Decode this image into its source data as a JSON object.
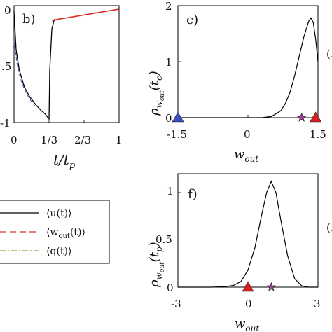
{
  "panels": {
    "b": {
      "label": "b)",
      "xlabel": "t/t",
      "xlabel_sub": "p",
      "x_tick_labels": [
        "0",
        "1/3",
        "2/3",
        "1"
      ],
      "y_tick_labels": [
        ".5",
        "-1"
      ],
      "y_top_tick": "0"
    },
    "c": {
      "label": "c)",
      "ylabel": "ρ",
      "ylabel_sub": "w",
      "ylabel_subsub": "out",
      "ylabel_arg": "(t",
      "ylabel_arg_sub": "c",
      "ylabel_close": ")",
      "xlabel": "w",
      "xlabel_sub": "out",
      "x_tick_labels": [
        "-1.5",
        "0",
        "1.5"
      ],
      "y_tick_labels": [
        "0",
        "1",
        "2"
      ],
      "edge_mark": "(."
    },
    "f": {
      "label": "f)",
      "ylabel": "ρ",
      "ylabel_sub": "w",
      "ylabel_subsub": "out",
      "ylabel_arg": "(t",
      "ylabel_arg_sub": "p",
      "ylabel_close": ")",
      "xlabel": "w",
      "xlabel_sub": "out",
      "x_tick_labels": [
        "-3",
        "0",
        "3"
      ],
      "y_tick_labels": [
        "0",
        "0.5",
        "1"
      ],
      "edge_mark": "(."
    }
  },
  "legend": {
    "entries": [
      {
        "label": "⟨u(t)⟩",
        "color": "#000000",
        "style": "solid"
      },
      {
        "label": "⟨w_out(t)⟩",
        "main": "⟨w",
        "sub": "out",
        "tail": "(t)⟩",
        "color": "#e0301e",
        "style": "dashed"
      },
      {
        "label": "⟨q(t)⟩",
        "color": "#77ac30",
        "style": "dashdot"
      }
    ]
  },
  "chart_data": [
    {
      "panel": "b",
      "type": "line",
      "xlim": [
        0,
        1
      ],
      "ylim": [
        -1,
        0
      ],
      "series": [
        {
          "color": "#000000",
          "x": [
            0,
            0.02,
            0.05,
            0.1,
            0.15,
            0.2,
            0.25,
            0.3,
            0.333,
            0.34,
            0.36,
            0.38,
            0.4,
            0.6,
            0.8,
            1.0
          ],
          "y": [
            -0.05,
            -0.38,
            -0.55,
            -0.7,
            -0.78,
            -0.84,
            -0.89,
            -0.93,
            -0.97,
            -0.55,
            -0.2,
            -0.13,
            -0.12,
            -0.09,
            -0.06,
            -0.03
          ]
        },
        {
          "color": "#e0301e",
          "x": [
            0.36,
            0.5,
            0.7,
            1.0
          ],
          "y": [
            -0.125,
            -0.105,
            -0.075,
            -0.03
          ]
        },
        {
          "color": "#4a5fc1",
          "x": [
            0.0,
            0.03,
            0.06,
            0.1,
            0.15,
            0.2
          ],
          "y": [
            -0.3,
            -0.5,
            -0.62,
            -0.72,
            -0.8,
            -0.86
          ]
        }
      ]
    },
    {
      "panel": "c",
      "type": "line",
      "xlim": [
        -1.5,
        1.5
      ],
      "ylim": [
        0,
        2
      ],
      "x": [
        -1.5,
        0.3,
        0.5,
        0.7,
        0.8,
        0.9,
        1.0,
        1.1,
        1.2,
        1.3,
        1.35,
        1.4,
        1.45,
        1.5
      ],
      "y": [
        0,
        0.0,
        0.02,
        0.12,
        0.25,
        0.45,
        0.75,
        1.1,
        1.45,
        1.72,
        1.78,
        1.7,
        1.4,
        1.0
      ],
      "markers": [
        {
          "shape": "triangle",
          "color": "#3a4fc0",
          "x": -1.5,
          "y": 0
        },
        {
          "shape": "star",
          "color": "#a03c9c",
          "x": 1.15,
          "y": 0
        },
        {
          "shape": "triangle",
          "color": "#d42020",
          "x": 1.45,
          "y": 0
        }
      ]
    },
    {
      "panel": "f",
      "type": "line",
      "xlim": [
        -3,
        3
      ],
      "ylim": [
        0,
        1.2
      ],
      "x": [
        -3,
        -1.6,
        -1.0,
        -0.6,
        -0.3,
        0.0,
        0.3,
        0.6,
        0.8,
        1.0,
        1.2,
        1.4,
        1.7,
        2.0,
        2.3,
        2.6,
        3.0
      ],
      "y": [
        0,
        0.0,
        0.005,
        0.02,
        0.06,
        0.18,
        0.42,
        0.78,
        1.0,
        1.12,
        1.0,
        0.72,
        0.33,
        0.09,
        0.015,
        0.0,
        0.0
      ],
      "markers": [
        {
          "shape": "triangle",
          "color": "#d42020",
          "x": 0,
          "y": 0
        },
        {
          "shape": "star",
          "color": "#a03c9c",
          "x": 1,
          "y": 0
        }
      ]
    }
  ]
}
